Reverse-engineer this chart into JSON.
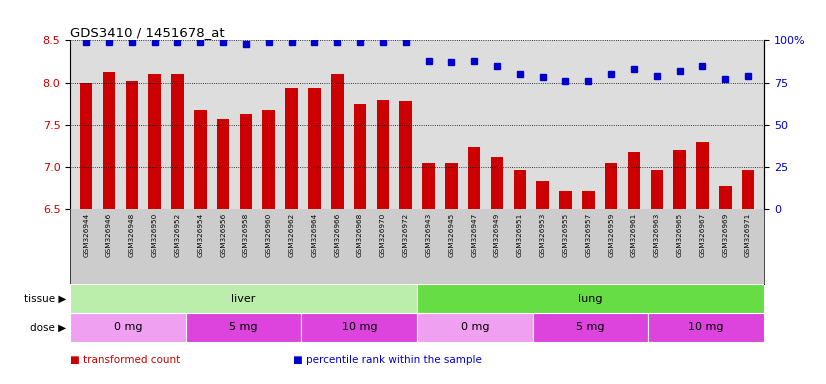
{
  "title": "GDS3410 / 1451678_at",
  "samples": [
    "GSM326944",
    "GSM326946",
    "GSM326948",
    "GSM326950",
    "GSM326952",
    "GSM326954",
    "GSM326956",
    "GSM326958",
    "GSM326960",
    "GSM326962",
    "GSM326964",
    "GSM326966",
    "GSM326968",
    "GSM326970",
    "GSM326972",
    "GSM326943",
    "GSM326945",
    "GSM326947",
    "GSM326949",
    "GSM326951",
    "GSM326953",
    "GSM326955",
    "GSM326957",
    "GSM326959",
    "GSM326961",
    "GSM326963",
    "GSM326965",
    "GSM326967",
    "GSM326969",
    "GSM326971"
  ],
  "bar_values": [
    8.0,
    8.13,
    8.02,
    8.1,
    8.1,
    7.67,
    7.57,
    7.63,
    7.67,
    7.93,
    7.93,
    8.1,
    7.75,
    7.79,
    7.78,
    7.05,
    7.05,
    7.24,
    7.12,
    6.96,
    6.83,
    6.72,
    6.72,
    7.05,
    7.18,
    6.97,
    7.2,
    7.3,
    6.78,
    6.97
  ],
  "percentile_values": [
    99,
    99,
    99,
    99,
    99,
    99,
    99,
    98,
    99,
    99,
    99,
    99,
    99,
    99,
    99,
    88,
    87,
    88,
    85,
    80,
    78,
    76,
    76,
    80,
    83,
    79,
    82,
    85,
    77,
    79
  ],
  "bar_color": "#cc0000",
  "percentile_color": "#0000cc",
  "ylim_left": [
    6.5,
    8.5
  ],
  "ylim_right": [
    0,
    100
  ],
  "yticks_left": [
    6.5,
    7.0,
    7.5,
    8.0,
    8.5
  ],
  "yticks_right": [
    0,
    25,
    50,
    75,
    100
  ],
  "tissue_groups": [
    {
      "label": "liver",
      "start": 0,
      "end": 15,
      "color": "#bbeeaa"
    },
    {
      "label": "lung",
      "start": 15,
      "end": 30,
      "color": "#66dd44"
    }
  ],
  "dose_groups": [
    {
      "label": "0 mg",
      "start": 0,
      "end": 5,
      "color": "#f0a0f0"
    },
    {
      "label": "5 mg",
      "start": 5,
      "end": 10,
      "color": "#dd44dd"
    },
    {
      "label": "10 mg",
      "start": 10,
      "end": 15,
      "color": "#dd44dd"
    },
    {
      "label": "0 mg",
      "start": 15,
      "end": 20,
      "color": "#f0a0f0"
    },
    {
      "label": "5 mg",
      "start": 20,
      "end": 25,
      "color": "#dd44dd"
    },
    {
      "label": "10 mg",
      "start": 25,
      "end": 30,
      "color": "#dd44dd"
    }
  ],
  "legend_items": [
    {
      "label": "transformed count",
      "color": "#cc0000"
    },
    {
      "label": "percentile rank within the sample",
      "color": "#0000cc"
    }
  ],
  "plot_bg_color": "#dddddd",
  "xlabel_bg_color": "#cccccc"
}
